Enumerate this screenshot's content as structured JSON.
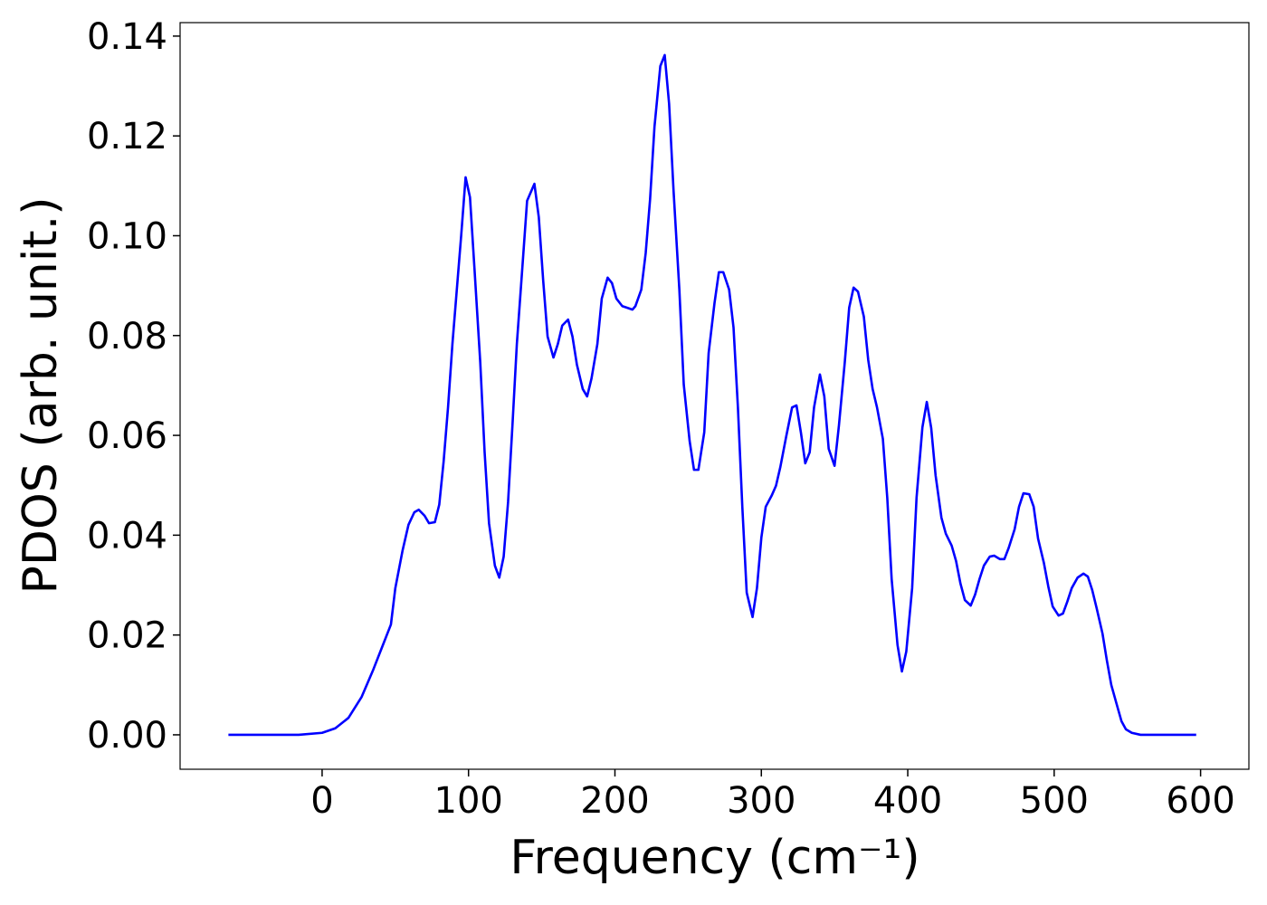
{
  "chart_data": {
    "type": "line",
    "x_label": "Frequency (cm⁻¹)",
    "y_label": "PDOS (arb. unit.)",
    "x": [
      -64,
      -16,
      0,
      9,
      18,
      27,
      35,
      41,
      47,
      50,
      55,
      59,
      63,
      66,
      70,
      73,
      77,
      80,
      83,
      86,
      89,
      92,
      95,
      98,
      101,
      104,
      108,
      111,
      114,
      118,
      121,
      124,
      127,
      130,
      133,
      137,
      140,
      145,
      148,
      151,
      154,
      158,
      161,
      164,
      168,
      171,
      174,
      178,
      181,
      184,
      188,
      191,
      195,
      198,
      201,
      205,
      208,
      212,
      214,
      218,
      221,
      224,
      227,
      231,
      234,
      237,
      240,
      244,
      247,
      251,
      254,
      257,
      261,
      264,
      268,
      271,
      274,
      278,
      281,
      284,
      287,
      290,
      294,
      297,
      300,
      303,
      307,
      310,
      313,
      317,
      321,
      324,
      327,
      330,
      333,
      336,
      340,
      343,
      346,
      350,
      353,
      357,
      360,
      363,
      366,
      370,
      373,
      376,
      379,
      383,
      386,
      389,
      393,
      396,
      399,
      403,
      406,
      410,
      413,
      416,
      419,
      423,
      426,
      430,
      433,
      436,
      439,
      443,
      446,
      449,
      452,
      456,
      459,
      463,
      466,
      469,
      473,
      476,
      479,
      483,
      486,
      489,
      493,
      496,
      499,
      503,
      506,
      509,
      512,
      516,
      520,
      523,
      526,
      529,
      533,
      536,
      539,
      543,
      546,
      549,
      553,
      559,
      597
    ],
    "series": [
      {
        "color": "#0000ff",
        "values": [
          0,
          0,
          0.0004,
          0.0013,
          0.0034,
          0.0076,
          0.0131,
          0.0176,
          0.0221,
          0.0294,
          0.037,
          0.0421,
          0.0446,
          0.0451,
          0.0439,
          0.0424,
          0.0426,
          0.0461,
          0.0548,
          0.0656,
          0.0783,
          0.0892,
          0.1001,
          0.1117,
          0.1077,
          0.0937,
          0.0747,
          0.0566,
          0.0424,
          0.0339,
          0.0315,
          0.0357,
          0.0466,
          0.062,
          0.0783,
          0.0946,
          0.107,
          0.1104,
          0.1037,
          0.091,
          0.0798,
          0.0756,
          0.0783,
          0.082,
          0.0832,
          0.0798,
          0.0742,
          0.0693,
          0.0678,
          0.0714,
          0.0783,
          0.0874,
          0.0916,
          0.0905,
          0.0874,
          0.0859,
          0.0856,
          0.0852,
          0.0859,
          0.0892,
          0.0965,
          0.1073,
          0.1218,
          0.134,
          0.1362,
          0.1264,
          0.1092,
          0.0892,
          0.0702,
          0.0589,
          0.0531,
          0.0531,
          0.0606,
          0.0765,
          0.0865,
          0.0927,
          0.0927,
          0.0892,
          0.0816,
          0.0656,
          0.0457,
          0.0285,
          0.0236,
          0.0294,
          0.0395,
          0.0457,
          0.0479,
          0.0499,
          0.0537,
          0.0598,
          0.0656,
          0.066,
          0.0606,
          0.0544,
          0.0566,
          0.0656,
          0.0722,
          0.0678,
          0.0573,
          0.0539,
          0.062,
          0.0747,
          0.0856,
          0.0896,
          0.0888,
          0.0838,
          0.0751,
          0.0693,
          0.0656,
          0.0593,
          0.0475,
          0.0312,
          0.018,
          0.0127,
          0.0167,
          0.0294,
          0.0475,
          0.0616,
          0.0667,
          0.0615,
          0.052,
          0.0435,
          0.0403,
          0.0379,
          0.0348,
          0.0303,
          0.027,
          0.0259,
          0.0281,
          0.0312,
          0.0339,
          0.0357,
          0.0359,
          0.0352,
          0.0352,
          0.0375,
          0.0412,
          0.0457,
          0.0484,
          0.0482,
          0.0457,
          0.0393,
          0.0344,
          0.0297,
          0.0257,
          0.0239,
          0.0243,
          0.0267,
          0.0294,
          0.0315,
          0.0323,
          0.0317,
          0.029,
          0.0254,
          0.0203,
          0.0149,
          0.01,
          0.0058,
          0.0027,
          0.0011,
          0.0004,
          0,
          0
        ]
      }
    ],
    "xlim": [
      -97,
      633
    ],
    "ylim": [
      -0.0069,
      0.1427
    ],
    "xticks": [
      0,
      100,
      200,
      300,
      400,
      500,
      600
    ],
    "yticks": [
      {
        "value": 0,
        "label": "0.00"
      },
      {
        "value": 0.02,
        "label": "0.02"
      },
      {
        "value": 0.04,
        "label": "0.04"
      },
      {
        "value": 0.06,
        "label": "0.06"
      },
      {
        "value": 0.08,
        "label": "0.08"
      },
      {
        "value": 0.1,
        "label": "0.10"
      },
      {
        "value": 0.12,
        "label": "0.12"
      },
      {
        "value": 0.14,
        "label": "0.14"
      }
    ],
    "grid": false
  }
}
